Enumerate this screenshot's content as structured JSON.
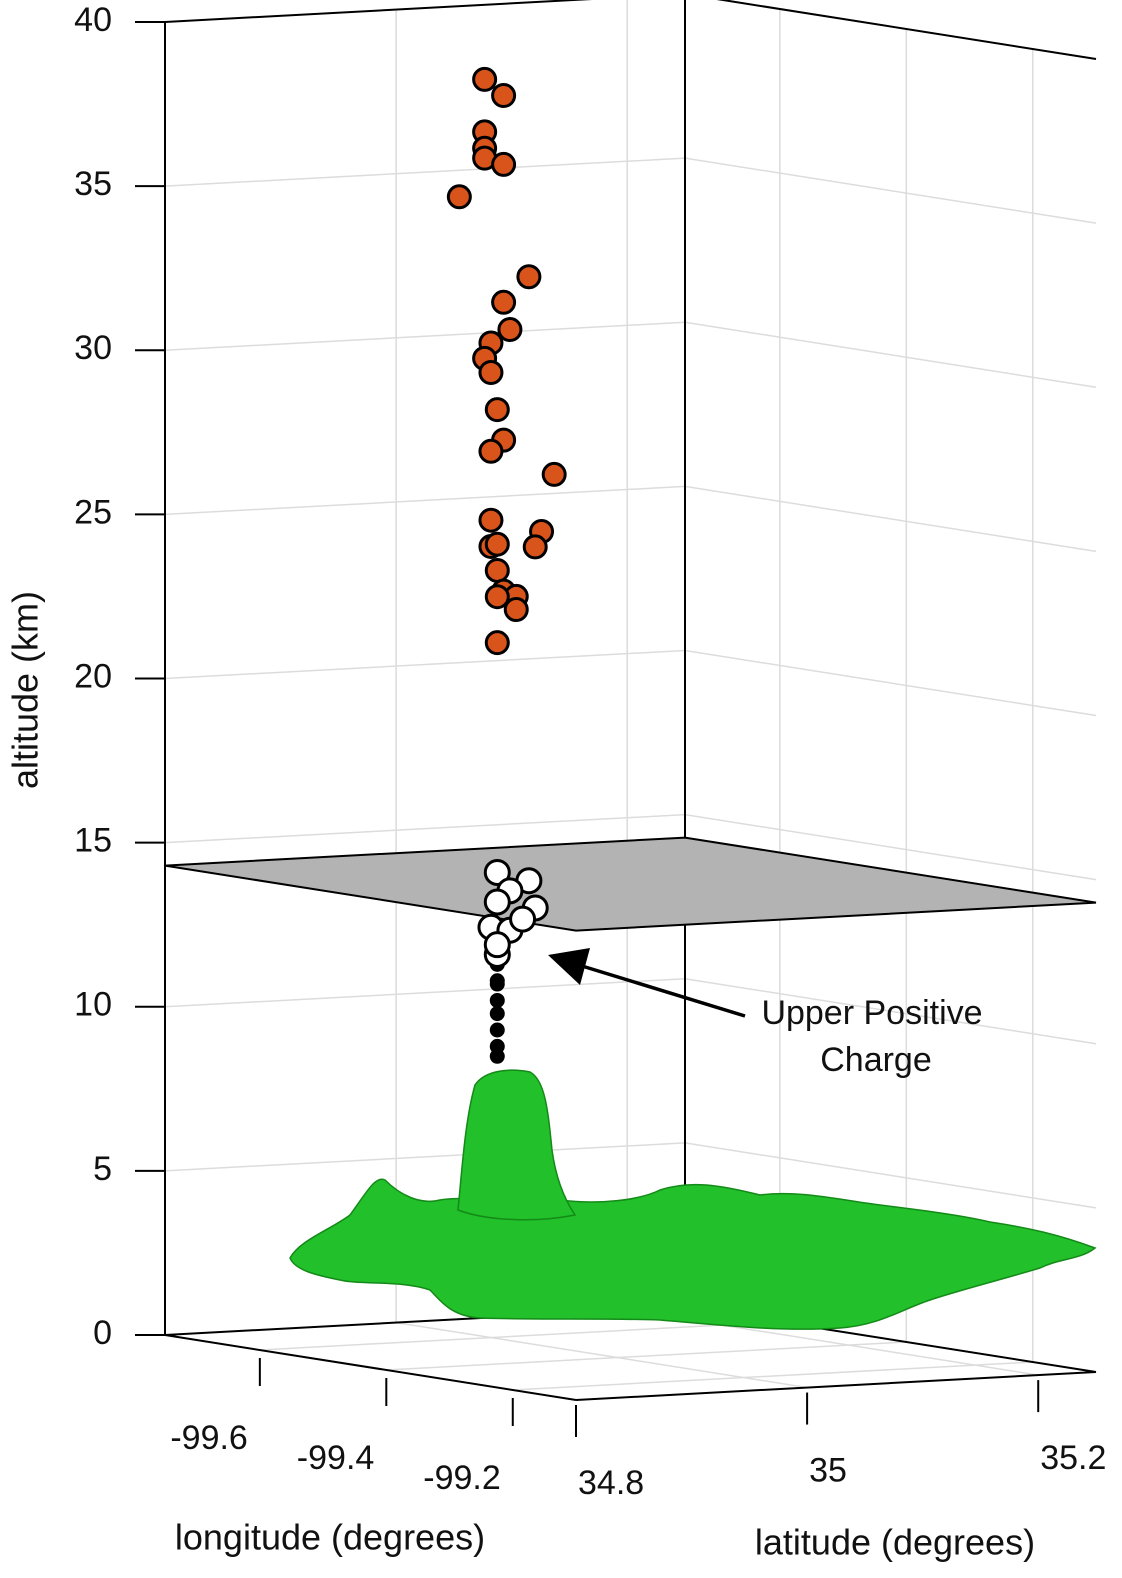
{
  "chart_data": {
    "type": "scatter3d",
    "xlabel": "longitude (degrees)",
    "ylabel": "latitude (degrees)",
    "zlabel": "altitude (km)",
    "xlim": [
      -99.75,
      -99.1
    ],
    "ylim": [
      34.8,
      35.25
    ],
    "zlim": [
      0,
      40
    ],
    "xticks": [
      -99.6,
      -99.4,
      -99.2
    ],
    "yticks": [
      34.8,
      35,
      35.2
    ],
    "zticks": [
      0,
      5,
      10,
      15,
      20,
      25,
      30,
      35,
      40
    ],
    "grid": true,
    "plane_altitude": 14.3,
    "plane_color": "#b3b3b3",
    "surface_color": "#22c02a",
    "annotation": [
      "Upper Positive",
      "Charge"
    ],
    "series": [
      {
        "color": "#d9541a",
        "marker_size": 11,
        "x": [
          -99.61,
          -99.58,
          -99.61,
          -99.61,
          -99.61,
          -99.58,
          -99.65,
          -99.54,
          -99.58,
          -99.57,
          -99.6,
          -99.61,
          -99.6,
          -99.59,
          -99.58,
          -99.6,
          -99.5,
          -99.6,
          -99.52,
          -99.53,
          -99.6,
          -99.59,
          -99.59,
          -99.58,
          -99.56,
          -99.59,
          -99.56,
          -99.59
        ],
        "y": [
          35,
          35,
          35,
          35,
          35,
          35,
          35,
          35,
          35,
          35,
          35,
          35,
          35,
          35,
          35,
          35,
          35,
          35,
          35,
          35,
          35,
          35,
          35,
          35,
          35,
          35,
          35,
          35
        ],
        "z": [
          38.3,
          37.9,
          36.7,
          36.2,
          35.9,
          35.8,
          34.6,
          32.5,
          31.6,
          30.8,
          30.3,
          29.8,
          29.4,
          28.3,
          27.4,
          27,
          26.6,
          24.9,
          24.8,
          24.3,
          24.1,
          24.2,
          23.4,
          22.8,
          22.7,
          22.6,
          22.3,
          21.2
        ]
      },
      {
        "color": "#000000",
        "marker_size": 6,
        "x": [
          -99.59,
          -99.59,
          -99.59,
          -99.59,
          -99.59,
          -99.59,
          -99.59,
          -99.59
        ],
        "y": [
          35,
          35,
          35,
          35,
          35,
          35,
          35,
          35
        ],
        "z": [
          11.4,
          10.9,
          10.8,
          10.3,
          9.9,
          9.4,
          8.9,
          8.6
        ]
      },
      {
        "color": "#ffffff",
        "marker_size": 12,
        "x": [
          -99.59,
          -99.54,
          -99.57,
          -99.59,
          -99.53,
          -99.6,
          -99.57,
          -99.55,
          -99.59,
          -99.59
        ],
        "y": [
          35,
          35,
          35,
          35,
          35,
          35,
          35,
          35,
          35,
          35
        ],
        "z": [
          14.2,
          14.1,
          13.7,
          13.3,
          13.3,
          12.5,
          12.5,
          12.9,
          11.7,
          12
        ]
      }
    ]
  }
}
